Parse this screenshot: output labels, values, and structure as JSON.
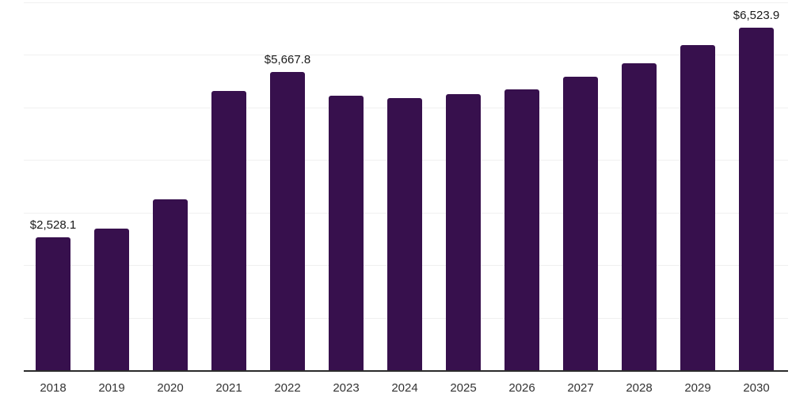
{
  "chart_data": {
    "type": "bar",
    "title": "",
    "xlabel": "",
    "ylabel": "",
    "categories": [
      "2018",
      "2019",
      "2020",
      "2021",
      "2022",
      "2023",
      "2024",
      "2025",
      "2026",
      "2027",
      "2028",
      "2029",
      "2030"
    ],
    "values": [
      2528.1,
      2690,
      3250,
      5310,
      5667.8,
      5230,
      5180,
      5260,
      5350,
      5580,
      5840,
      6180,
      6523.9
    ],
    "data_labels": [
      "$2,528.1",
      "",
      "",
      "",
      "$5,667.8",
      "",
      "",
      "",
      "",
      "",
      "",
      "",
      "$6,523.9"
    ],
    "ylim": [
      0,
      7000
    ],
    "grid_interval": 1000,
    "grid_on": true,
    "legend": "none",
    "colors": {
      "bar": "#37104d",
      "gridline": "#f0f0f0",
      "axis_line": "#2b2b2b",
      "x_tick_label": "#333333",
      "data_label": "#1a1a1a",
      "background": "#ffffff"
    }
  }
}
